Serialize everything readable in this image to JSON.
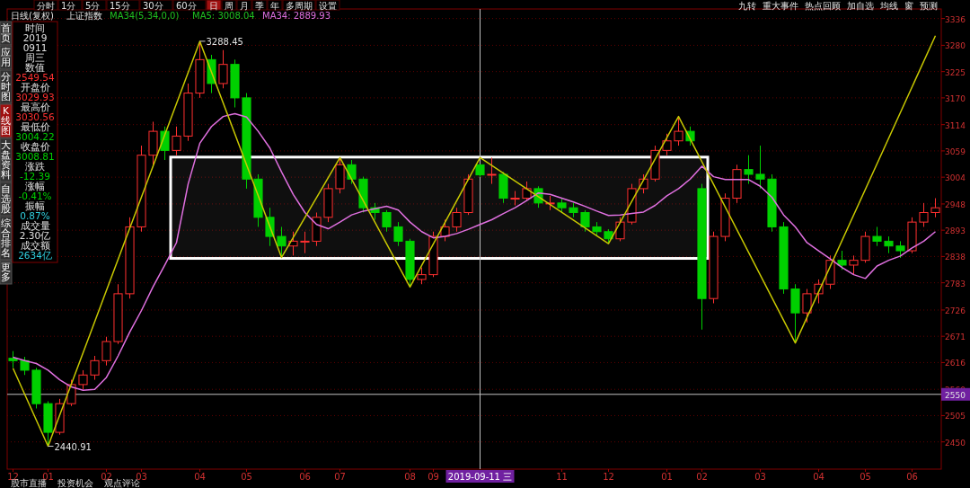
{
  "chart_data": {
    "type": "candlestick",
    "title": "上证指数",
    "categories": [
      "12",
      null,
      null,
      "01",
      null,
      null,
      null,
      null,
      "02",
      null,
      null,
      "03",
      null,
      null,
      null,
      null,
      "04",
      null,
      null,
      null,
      "05",
      null,
      null,
      null,
      null,
      "06",
      null,
      null,
      "07",
      null,
      null,
      null,
      null,
      null,
      "08",
      null,
      "09",
      null,
      null,
      null,
      "2019-09-11 三",
      null,
      null,
      null,
      null,
      null,
      null,
      "11",
      null,
      null,
      null,
      "12",
      null,
      null,
      null,
      null,
      "01",
      null,
      null,
      "02",
      null,
      null,
      null,
      null,
      "03",
      null,
      null,
      null,
      null,
      "04",
      null,
      null,
      null,
      "05",
      null,
      null,
      null,
      "06",
      null,
      null
    ],
    "ohlc": [
      [
        2625,
        2640,
        2605,
        2620
      ],
      [
        2620,
        2628,
        2590,
        2600
      ],
      [
        2600,
        2605,
        2520,
        2530
      ],
      [
        2530,
        2535,
        2440.91,
        2470
      ],
      [
        2470,
        2540,
        2465,
        2530
      ],
      [
        2530,
        2580,
        2525,
        2570
      ],
      [
        2570,
        2600,
        2560,
        2590
      ],
      [
        2590,
        2630,
        2580,
        2620
      ],
      [
        2620,
        2670,
        2610,
        2660
      ],
      [
        2660,
        2780,
        2655,
        2760
      ],
      [
        2760,
        2920,
        2750,
        2900
      ],
      [
        2900,
        3070,
        2890,
        3050
      ],
      [
        3050,
        3120,
        3030,
        3100
      ],
      [
        3100,
        3110,
        3040,
        3060
      ],
      [
        3060,
        3110,
        3050,
        3090
      ],
      [
        3090,
        3200,
        3080,
        3180
      ],
      [
        3180,
        3288.45,
        3170,
        3250
      ],
      [
        3250,
        3260,
        3180,
        3200
      ],
      [
        3200,
        3270,
        3190,
        3240
      ],
      [
        3240,
        3250,
        3150,
        3170
      ],
      [
        3170,
        3180,
        2980,
        3000
      ],
      [
        3000,
        3010,
        2900,
        2920
      ],
      [
        2920,
        2940,
        2860,
        2880
      ],
      [
        2880,
        2900,
        2836,
        2860
      ],
      [
        2860,
        2890,
        2840,
        2870
      ],
      [
        2870,
        2890,
        2845,
        2870
      ],
      [
        2870,
        2930,
        2860,
        2920
      ],
      [
        2920,
        2990,
        2910,
        2980
      ],
      [
        2980,
        3045,
        2970,
        3030
      ],
      [
        3030,
        3040,
        2990,
        3000
      ],
      [
        3000,
        3005,
        2930,
        2940
      ],
      [
        2940,
        2950,
        2915,
        2930
      ],
      [
        2930,
        2935,
        2890,
        2900
      ],
      [
        2900,
        2910,
        2860,
        2870
      ],
      [
        2870,
        2875,
        2774,
        2790
      ],
      [
        2790,
        2815,
        2780,
        2800
      ],
      [
        2800,
        2890,
        2795,
        2880
      ],
      [
        2880,
        2915,
        2870,
        2900
      ],
      [
        2900,
        2940,
        2890,
        2930
      ],
      [
        2930,
        3010,
        2925,
        3000
      ],
      [
        3029.93,
        3030.56,
        3004.22,
        3008.81
      ],
      [
        3008.81,
        3045,
        2990,
        3010
      ],
      [
        3010,
        3015,
        2950,
        2960
      ],
      [
        2960,
        2975,
        2945,
        2960
      ],
      [
        2960,
        2995,
        2955,
        2980
      ],
      [
        2980,
        2985,
        2940,
        2950
      ],
      [
        2950,
        2965,
        2935,
        2950
      ],
      [
        2950,
        2960,
        2930,
        2940
      ],
      [
        2940,
        2950,
        2920,
        2930
      ],
      [
        2930,
        2935,
        2890,
        2900
      ],
      [
        2900,
        2910,
        2880,
        2890
      ],
      [
        2890,
        2895,
        2865,
        2875
      ],
      [
        2875,
        2920,
        2870,
        2910
      ],
      [
        2910,
        2990,
        2905,
        2980
      ],
      [
        2980,
        3010,
        2970,
        3000
      ],
      [
        3000,
        3070,
        2995,
        3060
      ],
      [
        3060,
        3095,
        3050,
        3080
      ],
      [
        3080,
        3131,
        3070,
        3100
      ],
      [
        3100,
        3110,
        3070,
        3080
      ],
      [
        2980,
        2990,
        2685,
        2750
      ],
      [
        2750,
        2890,
        2740,
        2880
      ],
      [
        2880,
        2970,
        2870,
        2960
      ],
      [
        2960,
        3030,
        2950,
        3020
      ],
      [
        3020,
        3050,
        2990,
        3010
      ],
      [
        3010,
        3070,
        2980,
        3000
      ],
      [
        3000,
        3010,
        2890,
        2900
      ],
      [
        2900,
        2910,
        2760,
        2770
      ],
      [
        2770,
        2780,
        2657,
        2720
      ],
      [
        2720,
        2770,
        2700,
        2760
      ],
      [
        2760,
        2790,
        2740,
        2780
      ],
      [
        2780,
        2840,
        2770,
        2830
      ],
      [
        2830,
        2850,
        2810,
        2820
      ],
      [
        2820,
        2840,
        2800,
        2830
      ],
      [
        2830,
        2890,
        2825,
        2880
      ],
      [
        2880,
        2900,
        2860,
        2870
      ],
      [
        2870,
        2880,
        2845,
        2860
      ],
      [
        2860,
        2870,
        2835,
        2850
      ],
      [
        2850,
        2920,
        2845,
        2910
      ],
      [
        2910,
        2950,
        2900,
        2930
      ],
      [
        2930,
        2960,
        2920,
        2940
      ]
    ],
    "series": [
      {
        "name": "MA34: 2889.93",
        "type": "line",
        "color": "#e070e0",
        "values": [
          2627,
          2620,
          2614,
          2600,
          2580,
          2565,
          2558,
          2560,
          2585,
          2630,
          2680,
          2725,
          2775,
          2820,
          2867,
          2990,
          3075,
          3110,
          3131,
          3137,
          3130,
          3100,
          3065,
          3015,
          2968,
          2930,
          2905,
          2896,
          2910,
          2925,
          2933,
          2938,
          2943,
          2935,
          2910,
          2890,
          2877,
          2880,
          2886,
          2895,
          2905,
          2915,
          2928,
          2940,
          2955,
          2971,
          2968,
          2960,
          2952,
          2943,
          2933,
          2924,
          2925,
          2928,
          2931,
          2945,
          2965,
          2980,
          3000,
          3027,
          3005,
          2999,
          2999,
          2999,
          2985,
          2962,
          2925,
          2900,
          2867,
          2850,
          2833,
          2815,
          2800,
          2792,
          2818,
          2830,
          2839,
          2856,
          2870,
          2890
        ]
      },
      {
        "type": "line",
        "color": "#c8c800",
        "values": [
          2604,
          null,
          null,
          2440.91,
          null,
          null,
          null,
          null,
          null,
          null,
          null,
          null,
          null,
          null,
          null,
          null,
          3288.45,
          null,
          null,
          null,
          null,
          null,
          null,
          2836,
          null,
          null,
          null,
          null,
          3045,
          null,
          null,
          null,
          null,
          null,
          2774,
          null,
          null,
          null,
          null,
          null,
          3045,
          null,
          null,
          null,
          null,
          null,
          null,
          null,
          null,
          null,
          null,
          2865,
          null,
          null,
          null,
          null,
          null,
          3131,
          null,
          null,
          null,
          null,
          null,
          null,
          null,
          null,
          null,
          2657,
          null,
          null,
          null,
          null,
          null,
          null,
          null,
          null,
          null,
          null,
          null,
          3300
        ]
      }
    ],
    "ylim": [
      2393,
      3356
    ],
    "yticks": [
      3336,
      3280,
      3225,
      3170,
      3114,
      3059,
      3004,
      2948,
      2893,
      2838,
      2783,
      2726,
      2671,
      2616,
      2560,
      2505,
      2450
    ],
    "grid": "y",
    "legend": "top",
    "ref_lines": [
      {
        "axis": "x",
        "value": "2019-09-11 三",
        "color": "#c0c0c0"
      },
      {
        "axis": "y",
        "value": 2549.54,
        "label": "2550",
        "color": "#c0c0c0"
      }
    ],
    "bands": [
      {
        "axis": "y",
        "from": 2834,
        "to": 3046,
        "color": "#ffffff"
      }
    ],
    "annotations": [
      "分时",
      "1分",
      "5分",
      "15分",
      "30分",
      "60分",
      "日",
      "周",
      "月",
      "季",
      "年",
      "多周期",
      "设置",
      "九转",
      "重大事件",
      "热点回顾",
      "加自选",
      "均线",
      "窗",
      "预测",
      "日线(复权)",
      "MA34(5,34,0,0)",
      "MA5: 3008.04",
      "首页",
      "应用",
      "分时图",
      "K线图",
      "大盘资料",
      "自选股",
      "综合排名",
      "更多",
      "时间",
      "2019",
      "0911",
      "周三",
      "数值",
      "2549.54",
      "开盘价",
      "3029.93",
      "最高价",
      "3030.56",
      "最低价",
      "3004.22",
      "收盘价",
      "3008.81",
      "涨跌",
      "-12.39",
      "涨幅",
      "-0.41%",
      "振幅",
      "0.87%",
      "成交量",
      "2.30亿",
      "成交额",
      "2634亿",
      "股市直播",
      "投资机会",
      "观点评论",
      "3288.45",
      "2440.91"
    ]
  }
}
